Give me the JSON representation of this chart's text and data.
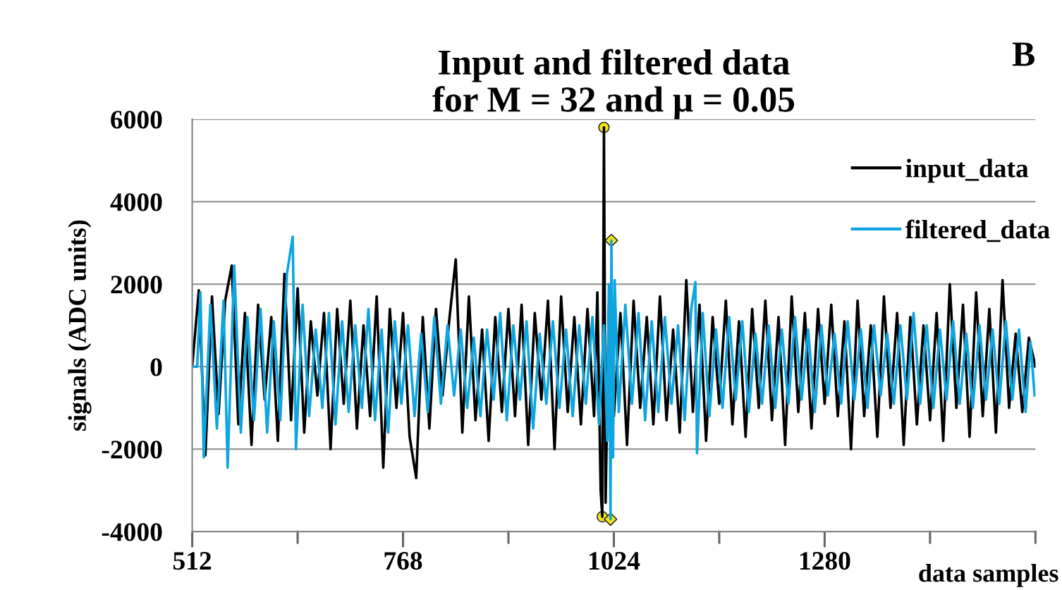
{
  "chart_data": {
    "type": "line",
    "title": "Input and filtered data\nfor M = 32 and μ = 0.05",
    "xlabel": "data samples",
    "ylabel": "signals (ADC units)",
    "annotations": [
      "B"
    ],
    "xlim": [
      512,
      1536
    ],
    "xticks": [
      512,
      {
        "value": 640,
        "label": null
      },
      768,
      {
        "value": 896,
        "label": null
      },
      1024,
      {
        "value": 1152,
        "label": null
      },
      1280,
      {
        "value": 1408,
        "label": null
      },
      {
        "value": 1536,
        "label": null
      }
    ],
    "ylim": [
      -4000,
      6000
    ],
    "yticks": [
      -4000,
      -2000,
      0,
      2000,
      4000,
      6000
    ],
    "grid": "y",
    "legend": "top right",
    "marker": "none",
    "line_style": "solid",
    "series": [
      {
        "name": "input_data",
        "color": "#000000",
        "x": [
          512,
          520,
          528,
          536,
          544,
          552,
          560,
          568,
          576,
          584,
          592,
          600,
          608,
          616,
          624,
          632,
          640,
          648,
          656,
          664,
          672,
          680,
          688,
          696,
          704,
          712,
          720,
          728,
          736,
          744,
          752,
          760,
          768,
          776,
          784,
          792,
          800,
          808,
          816,
          824,
          832,
          840,
          848,
          856,
          864,
          872,
          880,
          888,
          896,
          904,
          912,
          920,
          928,
          936,
          944,
          952,
          960,
          968,
          976,
          984,
          992,
          1000,
          1004,
          1008,
          1010,
          1012,
          1014,
          1018,
          1024,
          1032,
          1040,
          1048,
          1056,
          1064,
          1072,
          1080,
          1088,
          1096,
          1104,
          1112,
          1120,
          1128,
          1136,
          1144,
          1152,
          1160,
          1168,
          1176,
          1184,
          1192,
          1200,
          1208,
          1216,
          1224,
          1232,
          1240,
          1248,
          1256,
          1264,
          1272,
          1280,
          1288,
          1296,
          1304,
          1312,
          1320,
          1328,
          1336,
          1344,
          1352,
          1360,
          1368,
          1376,
          1384,
          1392,
          1400,
          1408,
          1416,
          1424,
          1432,
          1440,
          1448,
          1456,
          1464,
          1472,
          1480,
          1488,
          1496,
          1504,
          1512,
          1520,
          1528,
          1536
        ],
        "values": [
          0,
          1850,
          -2150,
          1700,
          -1150,
          1600,
          2450,
          -1400,
          1300,
          -1900,
          1500,
          -800,
          1200,
          -1800,
          2250,
          -1300,
          1900,
          -1600,
          1100,
          -700,
          1300,
          -2000,
          1400,
          -900,
          1600,
          -1500,
          1000,
          -1200,
          1700,
          -2450,
          1400,
          -1000,
          1300,
          -1700,
          -2700,
          1200,
          -1500,
          1400,
          -700,
          1100,
          2600,
          -1600,
          1700,
          -1300,
          900,
          -1800,
          1200,
          -1100,
          1400,
          -1200,
          1500,
          -1900,
          1300,
          -800,
          1600,
          -2000,
          1700,
          -1100,
          1200,
          -1400,
          1400,
          -1200,
          1800,
          -3000,
          -3640,
          5800,
          -3300,
          1500,
          -1200,
          1300,
          -1900,
          1600,
          -1000,
          1200,
          -1400,
          1700,
          -1300,
          900,
          -1600,
          2100,
          -1100,
          1500,
          -1800,
          1200,
          -900,
          1600,
          -1400,
          1100,
          -1700,
          1400,
          -1000,
          1600,
          -1300,
          1200,
          -1900,
          1700,
          -1100,
          1300,
          -1500,
          1400,
          -900,
          1500,
          -1200,
          1100,
          -2000,
          1600,
          -1200,
          1000,
          -1700,
          1700,
          -1000,
          1300,
          -1900,
          1200,
          -1400,
          1000,
          -1300,
          1300,
          -1800,
          2000,
          -1000,
          1500,
          -1700,
          1800,
          -1200,
          1400,
          -1600,
          2100,
          -1000,
          800,
          -1100,
          700,
          0
        ]
      },
      {
        "name": "filtered_data",
        "color": "#0ea5e0",
        "x": [
          512,
          518,
          522,
          526,
          534,
          542,
          550,
          555,
          563,
          571,
          579,
          587,
          595,
          603,
          611,
          619,
          627,
          634,
          638,
          646,
          654,
          662,
          670,
          678,
          686,
          694,
          702,
          710,
          718,
          726,
          734,
          742,
          750,
          758,
          766,
          774,
          782,
          790,
          798,
          806,
          814,
          822,
          830,
          838,
          846,
          854,
          862,
          870,
          878,
          886,
          894,
          902,
          910,
          918,
          926,
          934,
          942,
          950,
          958,
          966,
          974,
          982,
          990,
          998,
          1006,
          1012,
          1016,
          1018,
          1020,
          1021,
          1023,
          1025,
          1030,
          1038,
          1046,
          1054,
          1062,
          1070,
          1078,
          1086,
          1094,
          1102,
          1110,
          1118,
          1123,
          1125,
          1132,
          1140,
          1148,
          1156,
          1164,
          1172,
          1180,
          1188,
          1196,
          1204,
          1212,
          1220,
          1228,
          1236,
          1244,
          1252,
          1260,
          1268,
          1276,
          1284,
          1292,
          1300,
          1308,
          1316,
          1324,
          1332,
          1340,
          1348,
          1356,
          1364,
          1372,
          1380,
          1388,
          1396,
          1404,
          1412,
          1420,
          1428,
          1436,
          1444,
          1452,
          1460,
          1468,
          1476,
          1484,
          1492,
          1500,
          1508,
          1516,
          1524,
          1530,
          1535
        ],
        "values": [
          0,
          0,
          1800,
          -2200,
          1500,
          -1500,
          1600,
          -2450,
          2450,
          -1600,
          1200,
          -1300,
          1400,
          -1600,
          1100,
          -1300,
          2250,
          3150,
          -2000,
          1500,
          -1200,
          900,
          -1000,
          1300,
          -1400,
          1100,
          -1100,
          1000,
          -1000,
          1400,
          -1300,
          900,
          -1600,
          1100,
          -900,
          1000,
          -1200,
          800,
          -1100,
          1200,
          -900,
          1000,
          -700,
          900,
          -1000,
          700,
          -1200,
          900,
          -800,
          1300,
          -1300,
          1000,
          -800,
          1100,
          -1500,
          800,
          -900,
          1100,
          -1000,
          900,
          -1200,
          1000,
          -900,
          1200,
          -1400,
          1000,
          -1800,
          2000,
          -3700,
          3060,
          -2200,
          2100,
          -1100,
          1500,
          -900,
          1300,
          -1300,
          1100,
          -1100,
          1200,
          -900,
          1000,
          -1300,
          1400,
          2050,
          -2100,
          1300,
          -1200,
          900,
          -1000,
          1200,
          -800,
          1100,
          -1100,
          800,
          -900,
          1000,
          -1000,
          900,
          -900,
          1200,
          -800,
          900,
          -1100,
          1000,
          -700,
          800,
          -900,
          1100,
          -800,
          900,
          -1000,
          1000,
          -700,
          800,
          -900,
          1000,
          -800,
          1300,
          -900,
          1000,
          -1000,
          900,
          -800,
          1100,
          -900,
          800,
          -1000,
          1000,
          -800,
          900,
          -900,
          1100,
          -800,
          900,
          -1100,
          600,
          -700
        ]
      },
      {
        "type": "scatter",
        "marker": "circle",
        "color": "#f5e61a",
        "x": [
          1012,
          1010
        ],
        "values": [
          5800,
          -3640
        ]
      },
      {
        "type": "scatter",
        "marker": "diamond",
        "color": "#f5e61a",
        "x": [
          1021,
          1020
        ],
        "values": [
          3060,
          -3700
        ]
      }
    ]
  }
}
